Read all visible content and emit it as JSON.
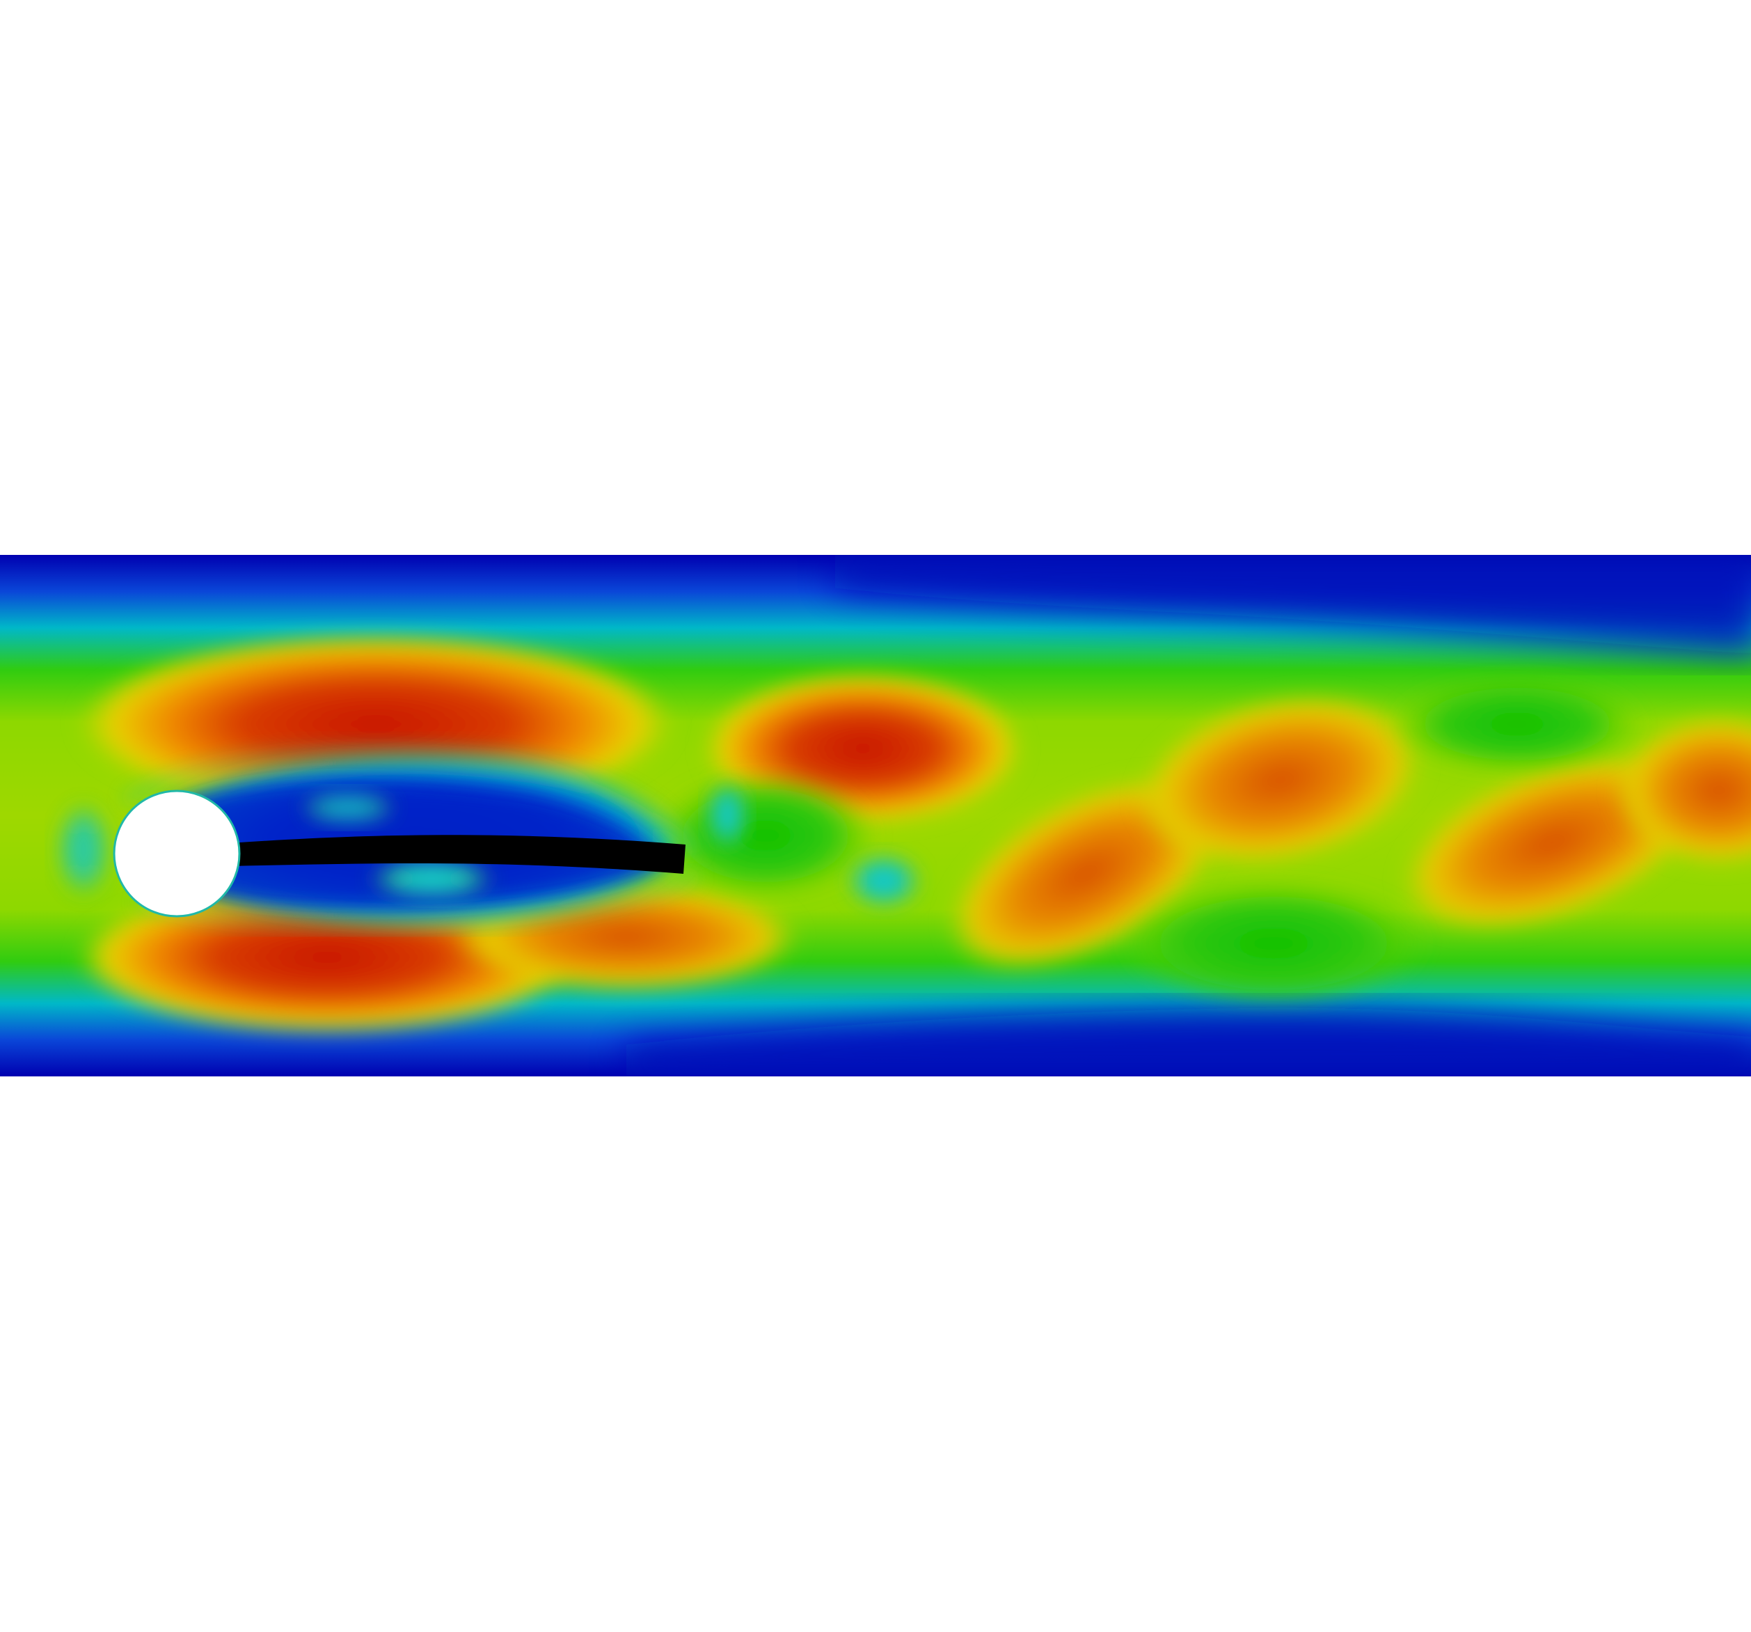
{
  "figure": {
    "subject": "flow-field-visualization",
    "colormap": "rainbow",
    "colors": {
      "background": "#ffffff",
      "low": "#0000b0",
      "low_mid": "#00b8d0",
      "mid": "#22c800",
      "mid_high": "#f0d400",
      "high": "#c81e00",
      "obstacle": "#ffffff",
      "flap": "#000000"
    }
  }
}
